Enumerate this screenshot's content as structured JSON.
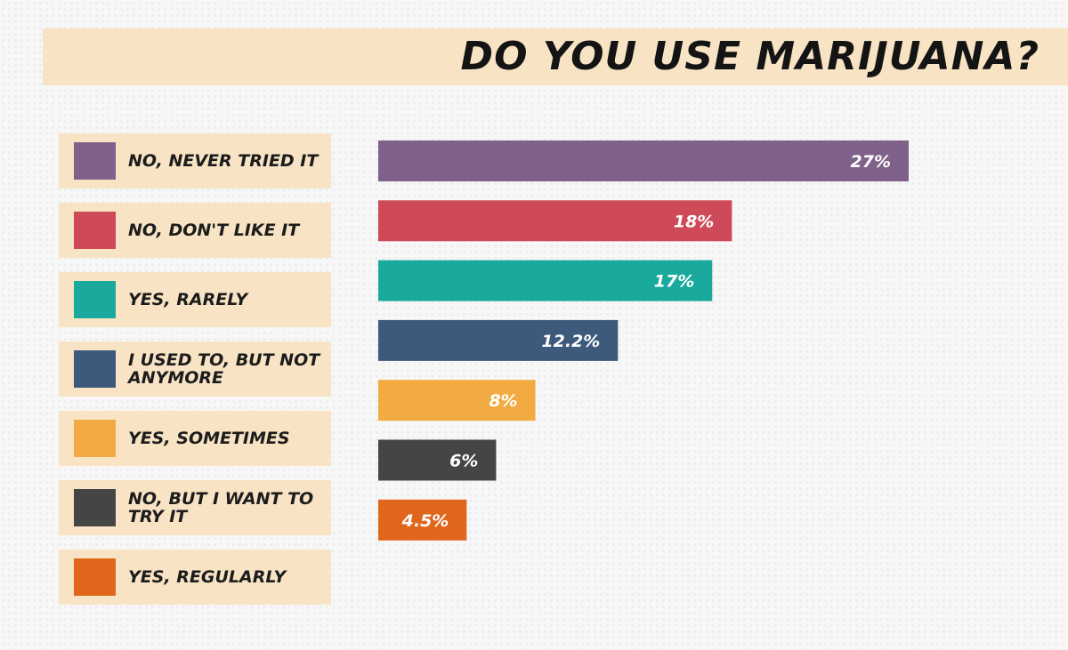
{
  "chart_data": {
    "type": "bar",
    "orientation": "horizontal",
    "title": "DO YOU USE MARIJUANA?",
    "categories": [
      "NO, NEVER TRIED IT",
      "NO, DON'T LIKE IT",
      "YES, RARELY",
      "I USED TO, BUT NOT ANYMORE",
      "YES, SOMETIMES",
      "NO, BUT I WANT TO TRY IT",
      "YES, REGULARLY"
    ],
    "values": [
      27,
      18,
      17,
      12.2,
      8,
      6,
      4.5
    ],
    "value_labels": [
      "27%",
      "18%",
      "17%",
      "12.2%",
      "8%",
      "6%",
      "4.5%"
    ],
    "colors": [
      "#7f6189",
      "#cf4a59",
      "#19a99d",
      "#3d5a7d",
      "#f2ab42",
      "#454545",
      "#e0661b"
    ],
    "xlim": [
      0,
      27
    ],
    "grid": false,
    "legend_position": "left"
  }
}
